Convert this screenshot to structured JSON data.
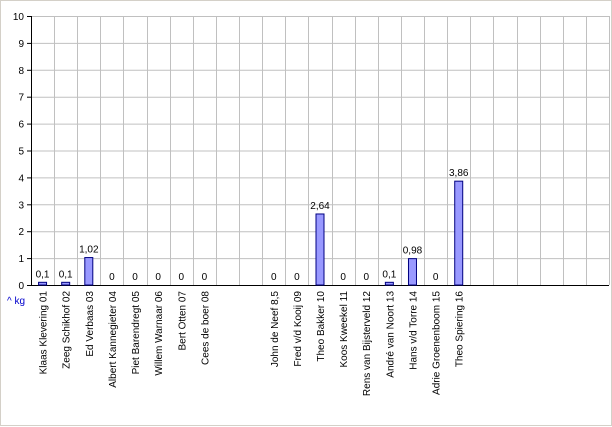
{
  "chart_data": {
    "type": "bar",
    "ylabel": "^ kg",
    "ylim": [
      0,
      10
    ],
    "yticks": [
      "0",
      "1",
      "2",
      "3",
      "4",
      "5",
      "6",
      "7",
      "8",
      "9",
      "10"
    ],
    "grid": true,
    "colors": {
      "bar": "#9999ff",
      "bar_edge": "#000080",
      "grid": "#c0c0c0"
    },
    "categories": [
      "Klaas Klevering 01",
      "Zeeg Schikhof 02",
      "Ed Verbaas 03",
      "Albert Kannegieter 04",
      "Piet Barendregt 05",
      "Willem Warnaar 06",
      "Bert Otten 07",
      "Cees de boer 08",
      "",
      "",
      "John de Neef 8,5",
      "Fred v/d Kooij 09",
      "Theo Bakker 10",
      "Koos Kweekel 11",
      "Rens van Bijsterveld 12",
      "André van Noort 13",
      "Hans v/d Torre 14",
      "Adrie Groenenboom 15",
      "Theo Spiering 16",
      "",
      "",
      "",
      "",
      "",
      ""
    ],
    "values": [
      0.1,
      0.1,
      1.02,
      0,
      0,
      0,
      0,
      0,
      null,
      null,
      0,
      0,
      2.64,
      0,
      0,
      0.1,
      0.98,
      0,
      3.86,
      null,
      null,
      null,
      null,
      null,
      null
    ],
    "data_labels": [
      "0,1",
      "0,1",
      "1,02",
      "0",
      "0",
      "0",
      "0",
      "0",
      "",
      "",
      "0",
      "0",
      "2,64",
      "0",
      "0",
      "0,1",
      "0,98",
      "0",
      "3,86",
      "",
      "",
      "",
      "",
      "",
      ""
    ]
  }
}
